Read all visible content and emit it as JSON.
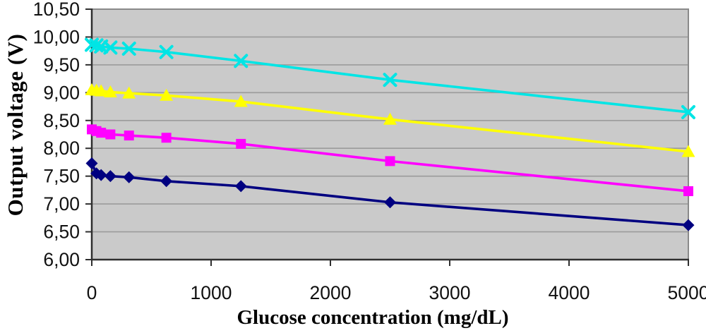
{
  "chart_data": {
    "type": "line",
    "title": "",
    "xlabel": "Glucose concentration (mg/dL)",
    "ylabel": "Output voltage (V)",
    "xlim": [
      0,
      5000
    ],
    "ylim": [
      6.0,
      10.5
    ],
    "ytick_step": 0.5,
    "ytick_labels": [
      "6,00",
      "6,50",
      "7,00",
      "7,50",
      "8,00",
      "8,50",
      "9,00",
      "9,50",
      "10,00",
      "10,50"
    ],
    "xticks": [
      0,
      1000,
      2000,
      3000,
      4000,
      5000
    ],
    "xtick_labels": [
      "0",
      "1000",
      "2000",
      "3000",
      "4000",
      "5000"
    ],
    "grid": "horizontal-only",
    "legend": "none",
    "plot_bg_color": "#CACACA",
    "grid_color": "#9B9B9B",
    "border_color": "#8A8A8A",
    "axis_color": "#2F2F2F",
    "x": [
      0,
      39,
      78,
      156,
      312,
      625,
      1250,
      2500,
      5000
    ],
    "series": [
      {
        "name": "navy-diamond-series",
        "marker": "diamond",
        "color": "#000080",
        "values": [
          7.73,
          7.55,
          7.52,
          7.5,
          7.48,
          7.41,
          7.32,
          7.03,
          6.62
        ]
      },
      {
        "name": "magenta-square-series",
        "marker": "square",
        "color": "#FF00FF",
        "values": [
          8.34,
          8.31,
          8.28,
          8.25,
          8.23,
          8.19,
          8.08,
          7.77,
          7.23
        ]
      },
      {
        "name": "yellow-triangle-series",
        "marker": "triangle",
        "color": "#FFFF00",
        "values": [
          9.05,
          9.04,
          9.03,
          9.01,
          8.99,
          8.95,
          8.84,
          8.52,
          7.94
        ]
      },
      {
        "name": "cyan-x-series",
        "marker": "x",
        "color": "#00E5E5",
        "values": [
          9.86,
          9.85,
          9.83,
          9.81,
          9.79,
          9.73,
          9.57,
          9.23,
          8.65
        ]
      }
    ]
  }
}
